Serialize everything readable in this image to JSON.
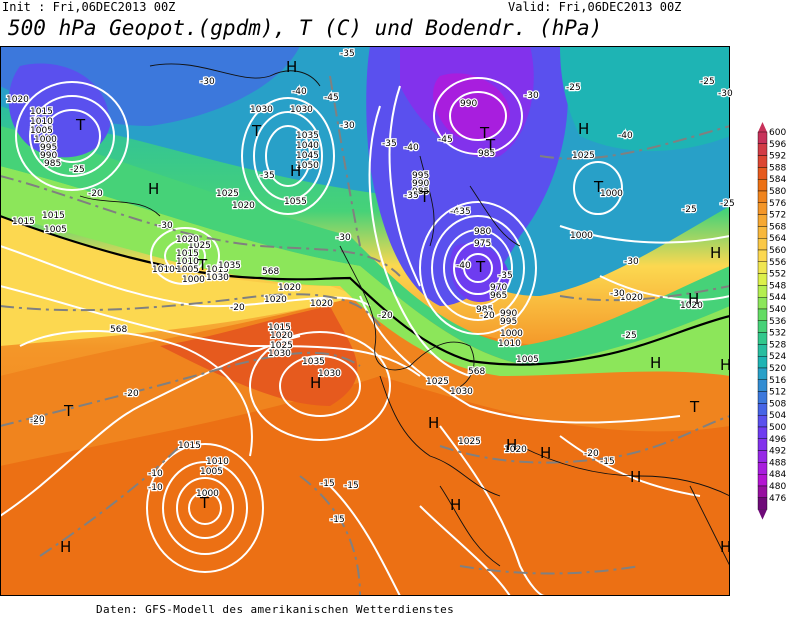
{
  "header": {
    "init": "Init : Fri,06DEC2013 00Z",
    "valid": "Valid: Fri,06DEC2013 00Z",
    "title": "500 hPa Geopot.(gpdm), T (C) und Bodendr. (hPa)"
  },
  "footer": "Daten: GFS-Modell des amerikanischen Wetterdienstes",
  "colorbar": {
    "levels": [
      "600",
      "596",
      "592",
      "588",
      "584",
      "580",
      "576",
      "572",
      "568",
      "564",
      "560",
      "556",
      "552",
      "548",
      "544",
      "540",
      "536",
      "532",
      "528",
      "524",
      "520",
      "516",
      "512",
      "508",
      "504",
      "500",
      "496",
      "492",
      "488",
      "484",
      "480",
      "476"
    ],
    "colors": [
      "#c8325a",
      "#d23c46",
      "#dc4632",
      "#e65a1e",
      "#ec7014",
      "#f0841e",
      "#f49628",
      "#f6a832",
      "#f8b83c",
      "#fac846",
      "#fcd850",
      "#f0e650",
      "#dcf04a",
      "#b4ee50",
      "#8ce65a",
      "#64dc64",
      "#46d278",
      "#32c88c",
      "#28bea0",
      "#1eb4b4",
      "#28a0c8",
      "#328cd2",
      "#3c78dc",
      "#4664e6",
      "#5a50ee",
      "#6e3cf0",
      "#8232ec",
      "#9628e6",
      "#a81ede",
      "#b414d2",
      "#960f9f",
      "#6e0a78"
    ]
  },
  "map_labels": {
    "pressure": [
      "1020",
      "1015",
      "1010",
      "1005",
      "1000",
      "995",
      "990",
      "985",
      "1030",
      "1030",
      "1035",
      "1040",
      "1045",
      "1050",
      "1055",
      "1025",
      "1020",
      "1015",
      "1035",
      "1030",
      "1025",
      "1020",
      "1015",
      "1010",
      "1005",
      "1000",
      "995",
      "990",
      "985",
      "990",
      "985",
      "980",
      "975",
      "970",
      "965",
      "985",
      "990",
      "995",
      "1000",
      "1010",
      "1005",
      "1025",
      "1030",
      "1035",
      "1030",
      "1025",
      "1020",
      "1015",
      "1010",
      "1005",
      "1000",
      "1030",
      "1025",
      "1020",
      "1020",
      "1010",
      "1000",
      "1000",
      "1015",
      "1015",
      "1005",
      "1020",
      "1025",
      "1020",
      "1020",
      "1020",
      "1010",
      "1015"
    ],
    "temperature": [
      "-30",
      "-35",
      "-25",
      "-20",
      "-30",
      "-35",
      "-40",
      "-45",
      "-40",
      "-30",
      "-25",
      "-30",
      "-35",
      "-45",
      "-35",
      "-40",
      "-35",
      "-30",
      "-40",
      "-30",
      "-25",
      "-25",
      "-25",
      "-20",
      "-20",
      "-20",
      "-15",
      "-10",
      "-10",
      "-15",
      "-15",
      "-15",
      "-20",
      "-20",
      "-25",
      "-30",
      "-35",
      "-40",
      "-30",
      "-20",
      "-20",
      "-15"
    ],
    "highs_lows": [
      "T",
      "T",
      "T",
      "T",
      "T",
      "T",
      "T",
      "T",
      "T",
      "T",
      "T",
      "H",
      "H",
      "H",
      "H",
      "H",
      "H",
      "H",
      "H",
      "H",
      "H",
      "H",
      "H",
      "H",
      "H",
      "H",
      "H"
    ],
    "other": [
      "568",
      "568",
      "568"
    ]
  }
}
